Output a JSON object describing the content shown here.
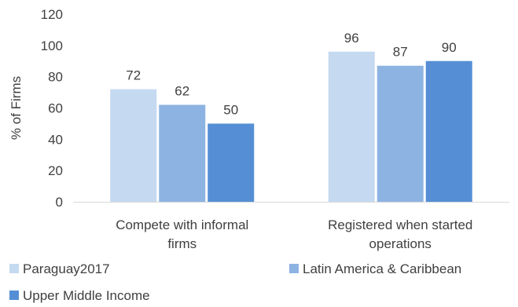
{
  "chart_data": {
    "type": "bar",
    "title": "",
    "xlabel": "",
    "ylabel": "% of Firms",
    "ylim": [
      0,
      120
    ],
    "yticks": [
      0,
      20,
      40,
      60,
      80,
      100,
      120
    ],
    "grid": false,
    "legend_position": "bottom",
    "categories": [
      [
        "Compete with informal",
        "firms"
      ],
      [
        "Registered when started",
        "operations"
      ]
    ],
    "series": [
      {
        "name": "Paraguay2017",
        "values": [
          72,
          96
        ],
        "color": "#c5d9f1"
      },
      {
        "name": "Latin America & Caribbean",
        "values": [
          62,
          87
        ],
        "color": "#8db3e2"
      },
      {
        "name": "Upper Middle Income",
        "values": [
          50,
          90
        ],
        "color": "#558ed5"
      }
    ]
  }
}
